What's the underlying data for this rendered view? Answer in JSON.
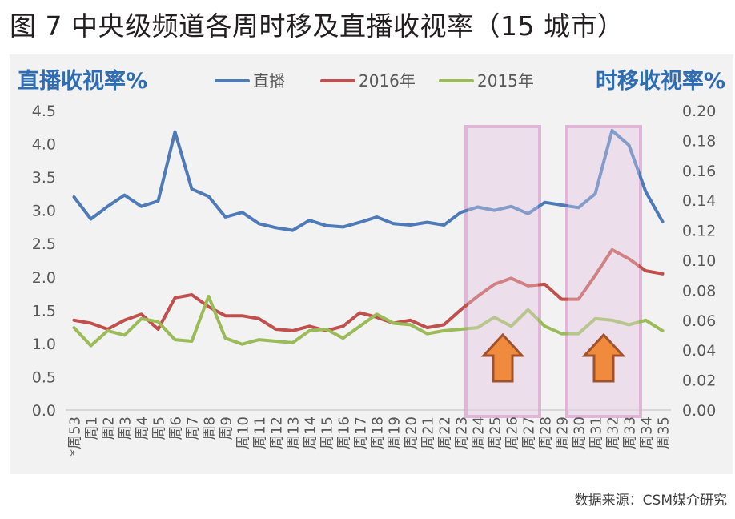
{
  "figure": {
    "title": "图 7 中央级频道各周时移及直播收视率（15 城市）",
    "source": "数据来源：CSM媒介研究"
  },
  "colors": {
    "live": "#4e7ab8",
    "y2016": "#c0504d",
    "y2015": "#9bbb59",
    "highlight_fill": "#ecdcea",
    "highlight_border": "#e0b5d8",
    "arrow_fill": "#f08a3c",
    "arrow_stroke": "#a0522d",
    "axis_title": "#2e6db4",
    "tick": "#595959",
    "grid": "#d0d0d0"
  },
  "chart_data": {
    "type": "line",
    "left_axis_title": "直播收视率%",
    "right_axis_title": "时移收视率%",
    "categories": [
      "*周53",
      "周1",
      "周2",
      "周3",
      "周4",
      "周5",
      "周6",
      "周7",
      "周8",
      "周9",
      "周10",
      "周11",
      "周12",
      "周13",
      "周14",
      "周15",
      "周16",
      "周17",
      "周18",
      "周19",
      "周20",
      "周21",
      "周22",
      "周23",
      "周24",
      "周25",
      "周26",
      "周27",
      "周28",
      "周29",
      "周30",
      "周31",
      "周32",
      "周33",
      "周34",
      "周35"
    ],
    "yleft": {
      "min": 0,
      "max": 4.5,
      "step": 0.5,
      "ticks": [
        "0.0",
        "0.5",
        "1.0",
        "1.5",
        "2.0",
        "2.5",
        "3.0",
        "3.5",
        "4.0",
        "4.5"
      ]
    },
    "yright": {
      "min": 0,
      "max": 0.2,
      "step": 0.02,
      "ticks": [
        "0.00",
        "0.02",
        "0.04",
        "0.06",
        "0.08",
        "0.10",
        "0.12",
        "0.14",
        "0.16",
        "0.18",
        "0.20"
      ]
    },
    "legend": {
      "position": "top-center",
      "entries": [
        "直播",
        "2016年",
        "2015年"
      ]
    },
    "series": [
      {
        "name": "直播",
        "axis": "left",
        "color": "#4e7ab8",
        "values": [
          3.2,
          2.87,
          3.06,
          3.23,
          3.06,
          3.14,
          4.18,
          3.32,
          3.21,
          2.9,
          2.97,
          2.8,
          2.74,
          2.7,
          2.85,
          2.77,
          2.75,
          2.82,
          2.9,
          2.8,
          2.78,
          2.82,
          2.78,
          2.97,
          3.05,
          3.0,
          3.06,
          2.95,
          3.12,
          3.08,
          3.04,
          3.25,
          4.2,
          3.98,
          3.28,
          2.83
        ]
      },
      {
        "name": "2016年",
        "axis": "right",
        "color": "#c0504d",
        "values": [
          0.06,
          0.058,
          0.054,
          0.06,
          0.064,
          0.054,
          0.075,
          0.077,
          0.069,
          0.063,
          0.063,
          0.061,
          0.054,
          0.053,
          0.056,
          0.053,
          0.056,
          0.065,
          0.062,
          0.058,
          0.06,
          0.055,
          0.057,
          0.067,
          0.076,
          0.084,
          0.088,
          0.083,
          0.084,
          0.074,
          0.074,
          0.09,
          0.107,
          0.101,
          0.093,
          0.091
        ]
      },
      {
        "name": "2015年",
        "axis": "right",
        "color": "#9bbb59",
        "values": [
          0.055,
          0.043,
          0.053,
          0.05,
          0.061,
          0.059,
          0.047,
          0.046,
          0.076,
          0.048,
          0.044,
          0.047,
          0.046,
          0.045,
          0.053,
          0.054,
          0.048,
          0.056,
          0.064,
          0.058,
          0.057,
          0.051,
          0.053,
          0.054,
          0.055,
          0.062,
          0.056,
          0.067,
          0.056,
          0.051,
          0.051,
          0.061,
          0.06,
          0.057,
          0.06,
          0.053
        ]
      }
    ],
    "highlights": [
      {
        "from": "周24",
        "to": "周27"
      },
      {
        "from": "周30",
        "to": "周33"
      }
    ],
    "grid": false
  }
}
